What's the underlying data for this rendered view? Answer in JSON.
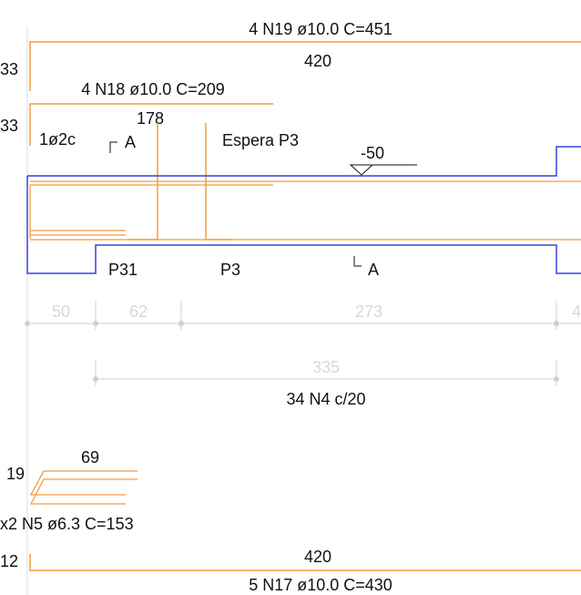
{
  "colors": {
    "rebar": "#f39c3c",
    "concrete": "#3344dd",
    "text": "#111111",
    "dimension": "#cfcfcf",
    "reference_line": "#dddddd"
  },
  "top_bars": {
    "n19_label": "4 N19 ø10.0 C=451",
    "n19_length": "420",
    "n19_hook": "33",
    "n18_label": "4 N18 ø10.0 C=209",
    "n18_hook": "33",
    "n18_length": "178"
  },
  "annotations": {
    "stirrup_note": "1ø2c",
    "section_mark_left": "A",
    "section_mark_right": "A",
    "espera": "Espera P3",
    "level": "-50",
    "pillar_left": "P31",
    "pillar_right": "P3"
  },
  "dimensions": {
    "seg1": "50",
    "seg2": "62",
    "seg3": "273",
    "seg4": "4",
    "total": "335",
    "stirrups": "34 N4 c/20"
  },
  "bottom_bars": {
    "n5_width": "69",
    "n5_height": "19",
    "n5_label": "x2 N5 ø6.3 C=153",
    "n17_hook": "12",
    "n17_length": "420",
    "n17_label": "5 N17 ø10.0 C=430"
  }
}
